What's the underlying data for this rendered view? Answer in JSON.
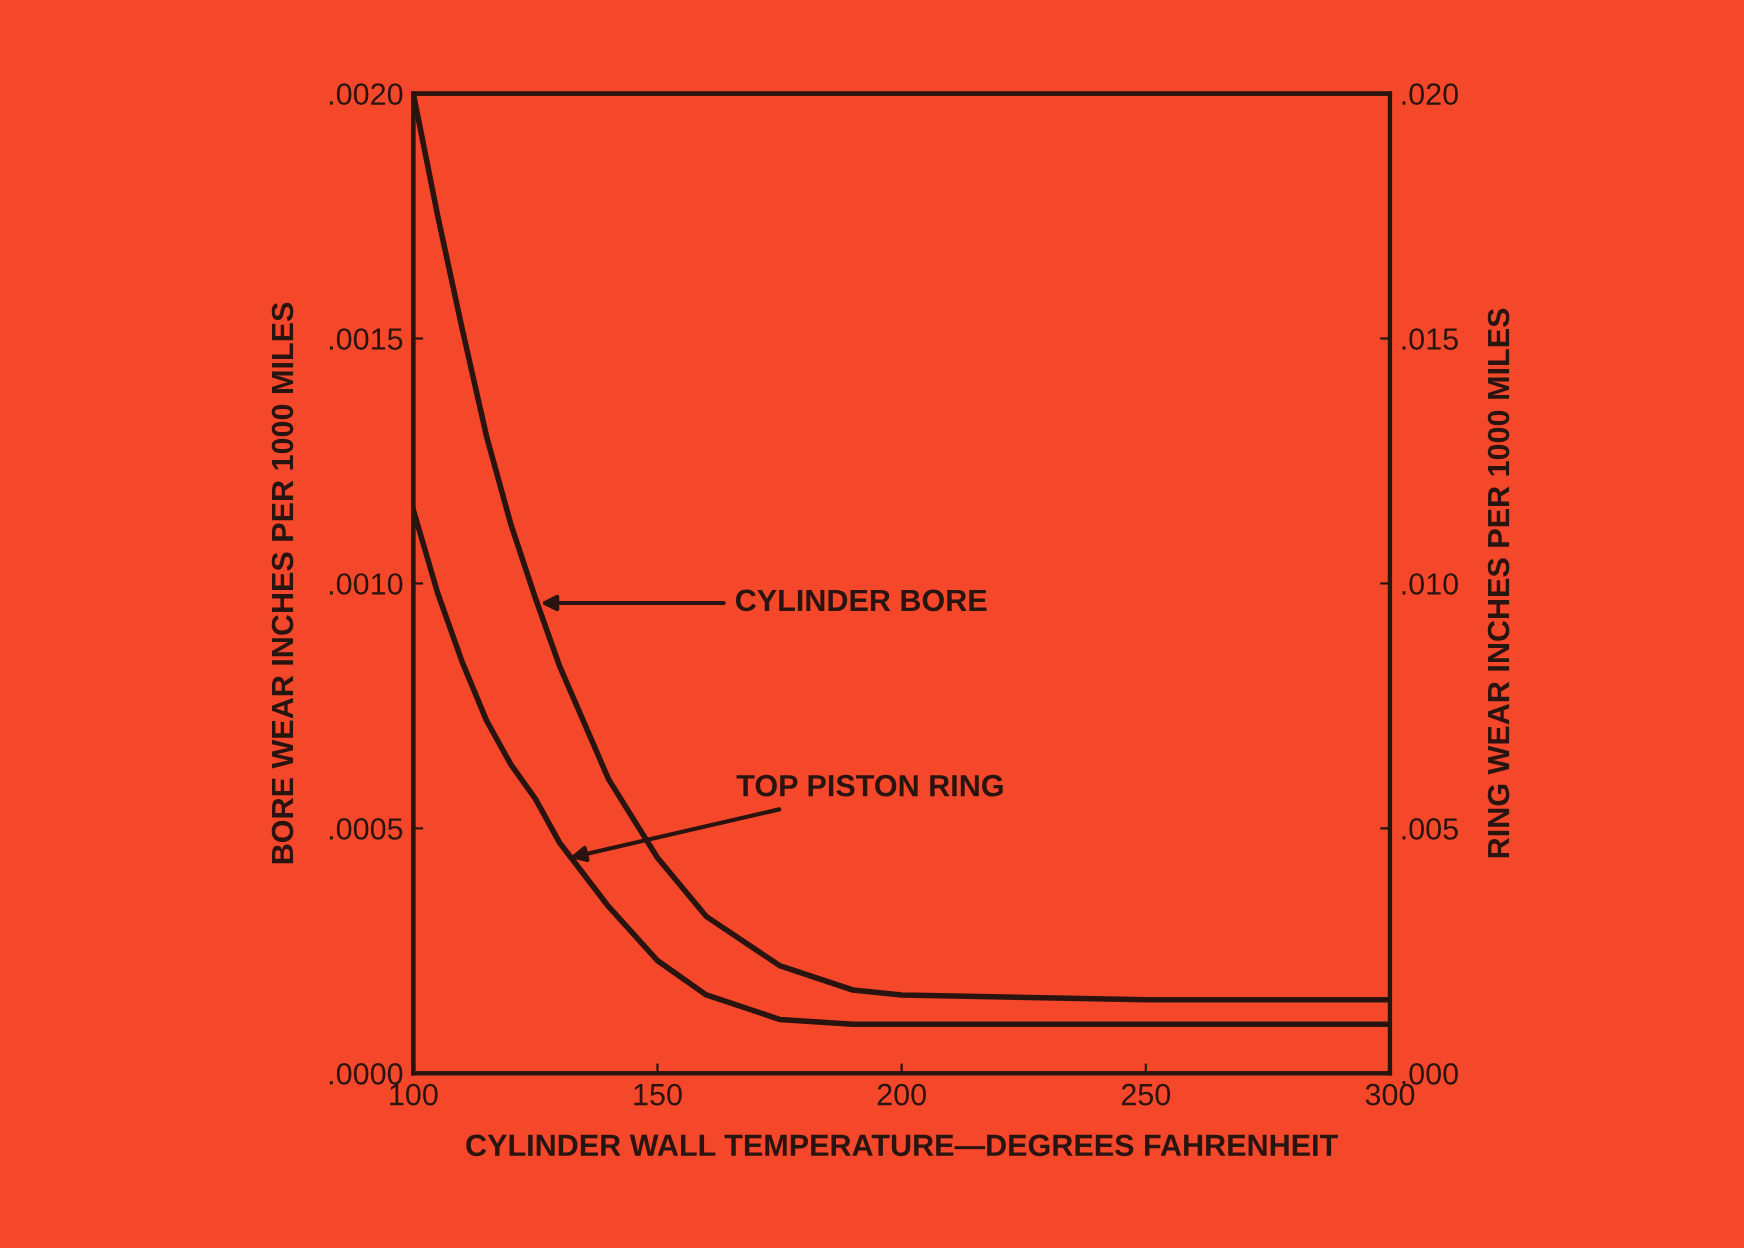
{
  "chart_data": {
    "type": "line",
    "xlabel": "CYLINDER WALL TEMPERATURE—DEGREES FAHRENHEIT",
    "ylabel": "BORE WEAR INCHES PER 1000 MILES",
    "y2label": "RING WEAR INCHES PER 1000 MILES",
    "xlim": [
      100,
      300
    ],
    "xticks": [
      100,
      150,
      200,
      250,
      300
    ],
    "ylim": [
      0,
      0.002
    ],
    "yticks": [
      {
        "value": 0,
        "label": ".0000"
      },
      {
        "value": 0.0005,
        "label": ".0005"
      },
      {
        "value": 0.001,
        "label": ".0010"
      },
      {
        "value": 0.0015,
        "label": ".0015"
      },
      {
        "value": 0.002,
        "label": ".0020"
      }
    ],
    "y2lim": [
      0,
      0.02
    ],
    "y2ticks": [
      {
        "value": 0,
        "label": ".000"
      },
      {
        "value": 0.005,
        "label": ".005"
      },
      {
        "value": 0.01,
        "label": ".010"
      },
      {
        "value": 0.015,
        "label": ".015"
      },
      {
        "value": 0.02,
        "label": ".020"
      }
    ],
    "grid": false,
    "legend": false,
    "marker": "none",
    "line_style": "solid",
    "series": [
      {
        "color": "#2a1410",
        "x": [
          100,
          105,
          110,
          115,
          120,
          125,
          130,
          140,
          150,
          160,
          175,
          190,
          200,
          250,
          300
        ],
        "values": [
          0.002,
          0.00175,
          0.00152,
          0.0013,
          0.00112,
          0.00097,
          0.00083,
          0.0006,
          0.00044,
          0.00032,
          0.00022,
          0.00017,
          0.00016,
          0.00015,
          0.00015
        ]
      },
      {
        "color": "#2a1410",
        "axis": "y2",
        "x": [
          100,
          105,
          110,
          115,
          120,
          125,
          130,
          140,
          150,
          160,
          175,
          190,
          200,
          250,
          300
        ],
        "values": [
          0.0115,
          0.0098,
          0.0084,
          0.0072,
          0.0063,
          0.0056,
          0.0047,
          0.0034,
          0.0023,
          0.0016,
          0.0011,
          0.001,
          0.001,
          0.001,
          0.001
        ]
      }
    ],
    "annotations": [
      {
        "text": "CYLINDER BORE",
        "x": 126,
        "y": 0.00096
      },
      {
        "text": "TOP PISTON RING",
        "x": 132,
        "y": 0.00044
      }
    ]
  }
}
